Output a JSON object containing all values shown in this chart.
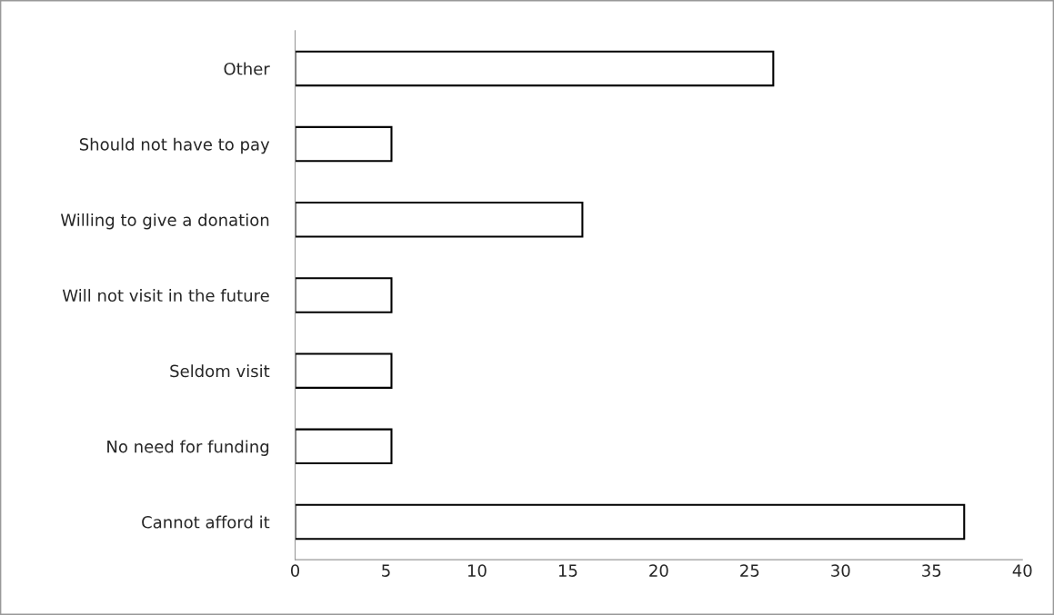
{
  "chart_data": {
    "type": "bar",
    "orientation": "horizontal",
    "categories": [
      "Other",
      "Should not have to pay",
      "Willing to give a donation",
      "Will not visit in the future",
      "Seldom visit",
      "No need for funding",
      "Cannot afford it"
    ],
    "values": [
      26.3,
      5.3,
      15.8,
      5.3,
      5.3,
      5.3,
      36.8
    ],
    "colors": [
      "#ffffff",
      "#ffffff",
      "#ffffff",
      "#ffffff",
      "#ffffff",
      "#ffffff",
      "#ffffff"
    ],
    "xlim": [
      0,
      40
    ],
    "xticks": [
      0,
      5,
      10,
      15,
      20,
      25,
      30,
      35,
      40
    ],
    "grid": false,
    "legend": false
  }
}
